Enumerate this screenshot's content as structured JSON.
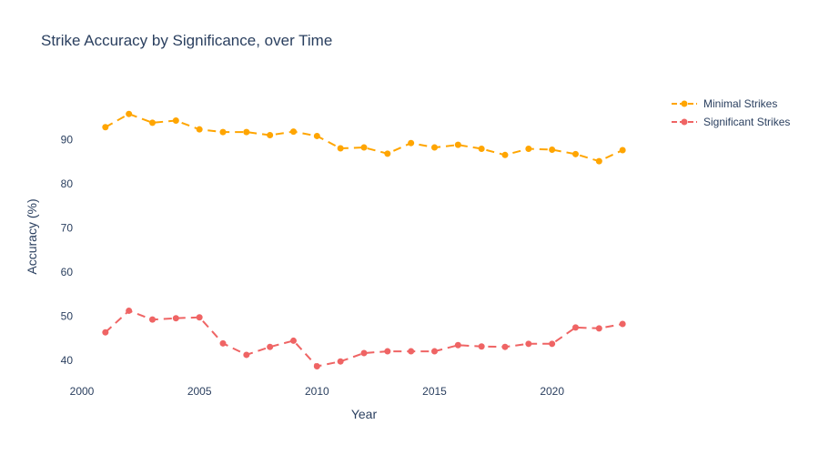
{
  "chart_data": {
    "type": "line",
    "title": "Strike Accuracy by Significance, over Time",
    "xlabel": "Year",
    "ylabel": "Accuracy (%)",
    "xlim": [
      2000,
      2024
    ],
    "ylim": [
      35,
      101
    ],
    "xticks": [
      2000,
      2005,
      2010,
      2015,
      2020
    ],
    "yticks": [
      40,
      50,
      60,
      70,
      80,
      90
    ],
    "grid": false,
    "legend_position": "top-right",
    "x": [
      2001,
      2002,
      2003,
      2004,
      2005,
      2006,
      2007,
      2008,
      2009,
      2010,
      2011,
      2012,
      2013,
      2014,
      2015,
      2016,
      2017,
      2018,
      2019,
      2020,
      2021,
      2022,
      2023
    ],
    "series": [
      {
        "name": "Minimal Strikes",
        "color": "#ffa500",
        "line_style": "dash",
        "marker": "circle",
        "values": [
          92.8,
          95.8,
          93.8,
          94.3,
          92.3,
          91.7,
          91.7,
          91.0,
          91.8,
          90.8,
          88.0,
          88.2,
          86.8,
          89.2,
          88.2,
          88.8,
          87.9,
          86.5,
          87.9,
          87.7,
          86.7,
          85.1,
          87.6
        ]
      },
      {
        "name": "Significant Strikes",
        "color": "#ef6464",
        "line_style": "dash",
        "marker": "circle",
        "values": [
          46.3,
          51.2,
          49.2,
          49.5,
          49.7,
          43.8,
          41.2,
          43.0,
          44.4,
          38.6,
          39.7,
          41.6,
          42.0,
          42.0,
          42.0,
          43.4,
          43.1,
          43.0,
          43.7,
          43.7,
          47.4,
          47.2,
          48.2
        ]
      }
    ]
  }
}
